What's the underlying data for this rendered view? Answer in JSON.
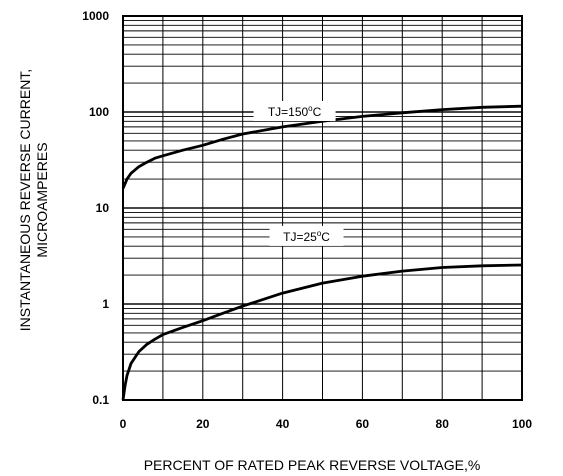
{
  "chart_data": {
    "type": "line",
    "xlabel": "PERCENT OF RATED PEAK REVERSE VOLTAGE,%",
    "ylabel_line1": "INSTANTANEOUS REVERSE CURRENT,",
    "ylabel_line2": "MICROAMPERES",
    "xlim": [
      0,
      100
    ],
    "ylim": [
      0.1,
      1000
    ],
    "y_scale": "log",
    "grid": true,
    "x_ticks": [
      0,
      20,
      40,
      60,
      80,
      100
    ],
    "y_ticks": [
      0.1,
      1,
      10,
      100,
      1000
    ],
    "x_tick_labels": [
      "0",
      "20",
      "40",
      "60",
      "80",
      "100"
    ],
    "y_tick_labels": [
      "0.1",
      "1",
      "10",
      "100",
      "1000"
    ],
    "series": [
      {
        "name": "TJ=150°C",
        "label_main": "TJ=150",
        "label_sup": "o",
        "label_end": "C",
        "label_at": [
          43,
          100
        ],
        "x": [
          0,
          1,
          2,
          4,
          6,
          8,
          10,
          15,
          20,
          25,
          30,
          40,
          50,
          60,
          70,
          80,
          90,
          100
        ],
        "y": [
          16,
          20,
          23,
          27,
          30,
          33,
          35,
          40,
          45,
          52,
          59,
          70,
          80,
          90,
          98,
          106,
          112,
          115
        ]
      },
      {
        "name": "TJ=25°C",
        "label_main": "TJ=25",
        "label_sup": "o",
        "label_end": "C",
        "label_at": [
          46,
          5
        ],
        "x": [
          0,
          0.5,
          1,
          2,
          4,
          6,
          8,
          10,
          15,
          20,
          25,
          30,
          40,
          50,
          60,
          70,
          80,
          90,
          100
        ],
        "y": [
          0.1,
          0.14,
          0.18,
          0.24,
          0.32,
          0.38,
          0.43,
          0.48,
          0.57,
          0.67,
          0.8,
          0.95,
          1.3,
          1.65,
          1.95,
          2.2,
          2.4,
          2.5,
          2.55
        ]
      }
    ]
  }
}
